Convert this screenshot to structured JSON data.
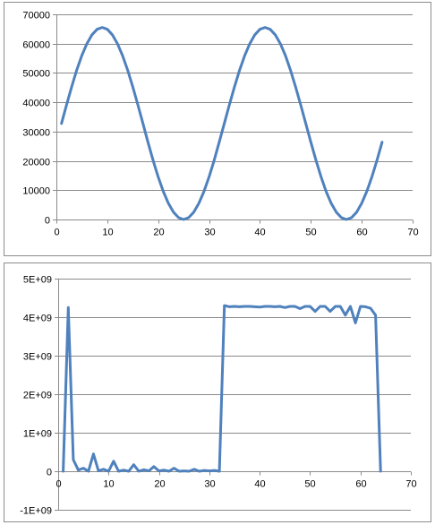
{
  "chart_data": [
    {
      "type": "line",
      "title": "",
      "xlabel": "",
      "ylabel": "",
      "xlim": [
        0,
        70
      ],
      "ylim": [
        0,
        70000
      ],
      "x_ticks": [
        0,
        10,
        20,
        30,
        40,
        50,
        60,
        70
      ],
      "y_ticks": [
        0,
        10000,
        20000,
        30000,
        40000,
        50000,
        60000,
        70000
      ],
      "y_tick_labels": [
        "0",
        "10000",
        "20000",
        "30000",
        "40000",
        "50000",
        "60000",
        "70000"
      ],
      "grid": "horizontal",
      "legend": "none",
      "series": [
        {
          "color": "#4f81bd",
          "x": [
            1,
            2,
            3,
            4,
            5,
            6,
            7,
            8,
            9,
            10,
            11,
            12,
            13,
            14,
            15,
            16,
            17,
            18,
            19,
            20,
            21,
            22,
            23,
            24,
            25,
            26,
            27,
            28,
            29,
            30,
            31,
            32,
            33,
            34,
            35,
            36,
            37,
            38,
            39,
            40,
            41,
            42,
            43,
            44,
            45,
            46,
            47,
            48,
            49,
            50,
            51,
            52,
            53,
            54,
            55,
            56,
            57,
            58,
            59,
            60,
            61,
            62,
            63,
            64
          ],
          "values": [
            32768,
            39160,
            45307,
            50972,
            55938,
            60013,
            63041,
            64905,
            65535,
            64905,
            63041,
            60013,
            55938,
            50972,
            45307,
            39160,
            32768,
            26376,
            20229,
            14564,
            9598,
            5523,
            2495,
            631,
            0,
            631,
            2495,
            5523,
            9598,
            14564,
            20229,
            26376,
            32768,
            39160,
            45307,
            50972,
            55938,
            60013,
            63041,
            64905,
            65535,
            64905,
            63041,
            60013,
            55938,
            50972,
            45307,
            39160,
            32768,
            26376,
            20229,
            14564,
            9598,
            5523,
            2495,
            631,
            0,
            631,
            2495,
            5523,
            9598,
            14564,
            20229,
            26376
          ]
        }
      ]
    },
    {
      "type": "line",
      "title": "",
      "xlabel": "",
      "ylabel": "",
      "xlim": [
        0,
        70
      ],
      "ylim": [
        -1000000000,
        5000000000
      ],
      "x_ticks": [
        0,
        10,
        20,
        30,
        40,
        50,
        60,
        70
      ],
      "y_ticks": [
        -1000000000,
        0,
        1000000000,
        2000000000,
        3000000000,
        4000000000,
        5000000000
      ],
      "y_tick_labels": [
        "-1E+09",
        "0",
        "1E+09",
        "2E+09",
        "3E+09",
        "4E+09",
        "5E+09"
      ],
      "grid": "horizontal",
      "legend": "none",
      "series": [
        {
          "color": "#4f81bd",
          "x": [
            1,
            2,
            3,
            4,
            5,
            6,
            7,
            8,
            9,
            10,
            11,
            12,
            13,
            14,
            15,
            16,
            17,
            18,
            19,
            20,
            21,
            22,
            23,
            24,
            25,
            26,
            27,
            28,
            29,
            30,
            31,
            32,
            33,
            34,
            35,
            36,
            37,
            38,
            39,
            40,
            41,
            42,
            43,
            44,
            45,
            46,
            47,
            48,
            49,
            50,
            51,
            52,
            53,
            54,
            55,
            56,
            57,
            58,
            59,
            60,
            61,
            62,
            63,
            64
          ],
          "values": [
            0,
            4250000000,
            300000000,
            30000000,
            80000000,
            0,
            450000000,
            10000000,
            50000000,
            0,
            260000000,
            0,
            30000000,
            0,
            170000000,
            0,
            40000000,
            10000000,
            120000000,
            10000000,
            30000000,
            0,
            80000000,
            0,
            10000000,
            0,
            50000000,
            0,
            20000000,
            10000000,
            20000000,
            0,
            4300000000,
            4270000000,
            4280000000,
            4270000000,
            4280000000,
            4280000000,
            4270000000,
            4260000000,
            4280000000,
            4280000000,
            4270000000,
            4280000000,
            4250000000,
            4280000000,
            4280000000,
            4220000000,
            4280000000,
            4280000000,
            4150000000,
            4280000000,
            4280000000,
            4150000000,
            4280000000,
            4280000000,
            4050000000,
            4280000000,
            3850000000,
            4280000000,
            4270000000,
            4230000000,
            4050000000,
            0
          ]
        }
      ]
    }
  ]
}
